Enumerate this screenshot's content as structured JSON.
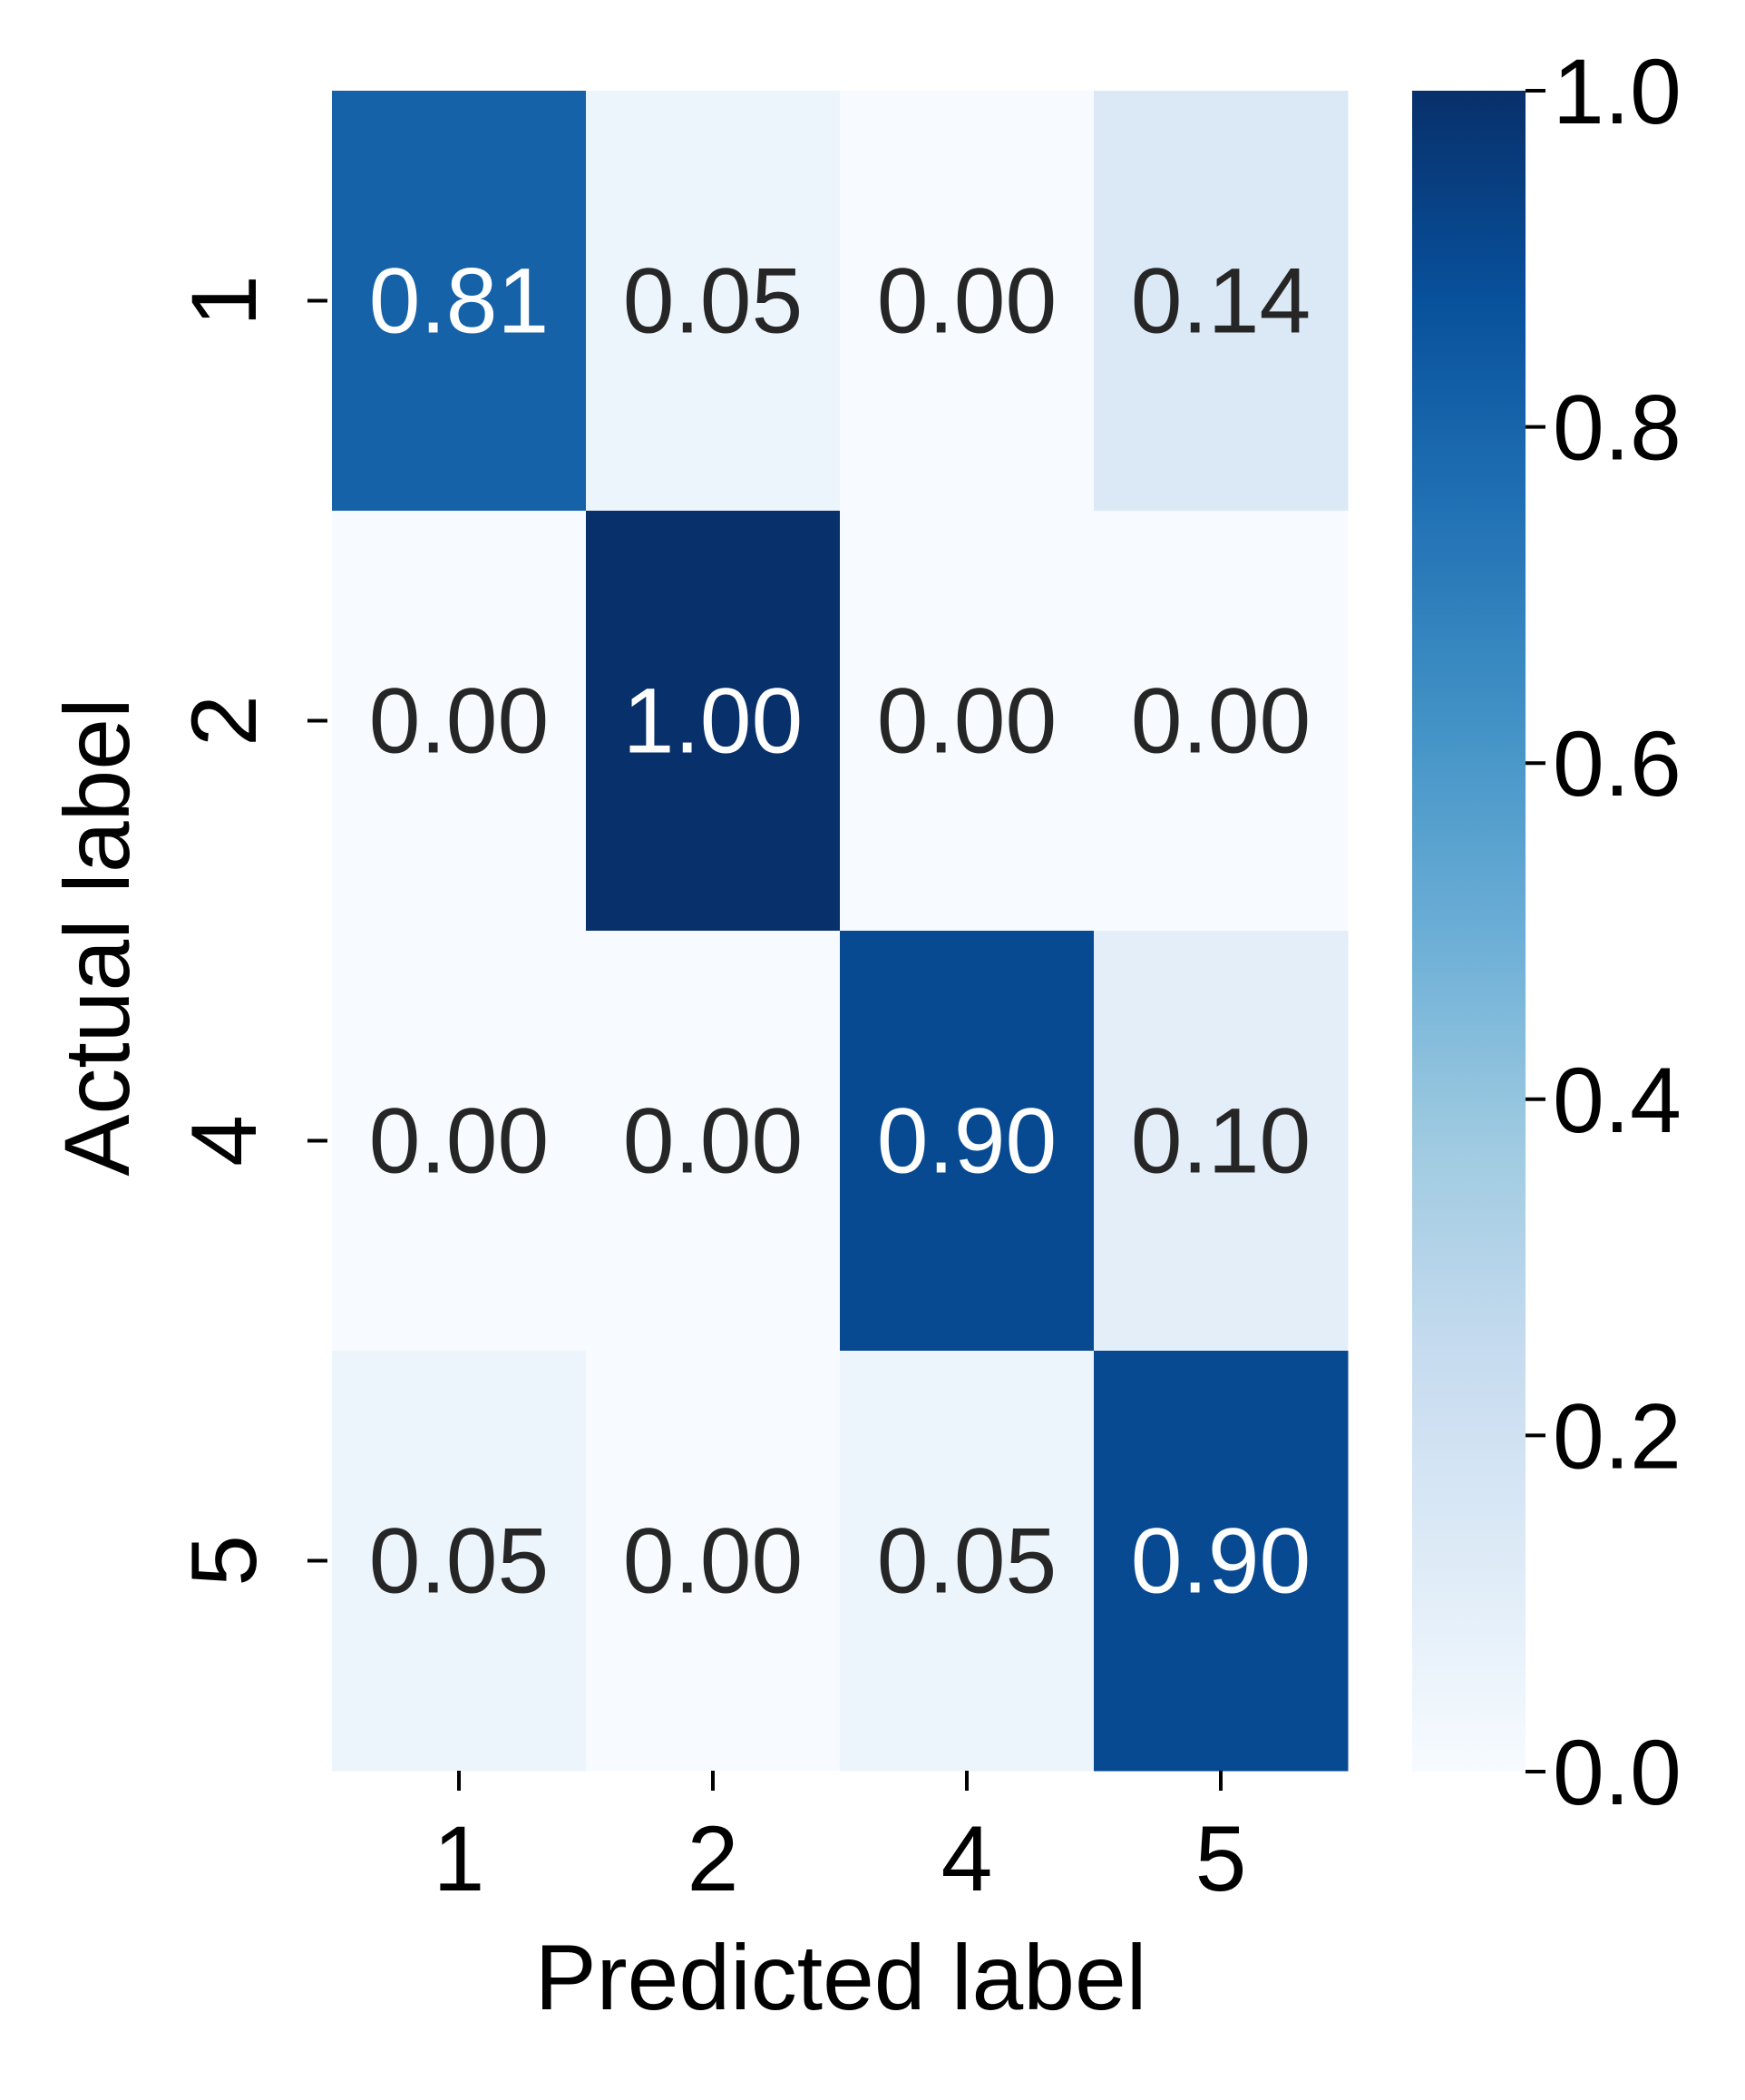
{
  "chart_data": {
    "type": "heatmap",
    "title": "",
    "xlabel": "Predicted label",
    "ylabel": "Actual label",
    "x_categories": [
      "1",
      "2",
      "4",
      "5"
    ],
    "y_categories": [
      "1",
      "2",
      "4",
      "5"
    ],
    "values": [
      [
        0.81,
        0.05,
        0.0,
        0.14
      ],
      [
        0.0,
        1.0,
        0.0,
        0.0
      ],
      [
        0.0,
        0.0,
        0.9,
        0.1
      ],
      [
        0.05,
        0.0,
        0.05,
        0.9
      ]
    ],
    "value_format": "0.00",
    "colorbar": {
      "range": [
        0.0,
        1.0
      ],
      "ticks": [
        "0.0",
        "0.2",
        "0.4",
        "0.6",
        "0.8",
        "1.0"
      ],
      "colormap": "Blues"
    },
    "grid": false,
    "legend": "colorbar right"
  }
}
